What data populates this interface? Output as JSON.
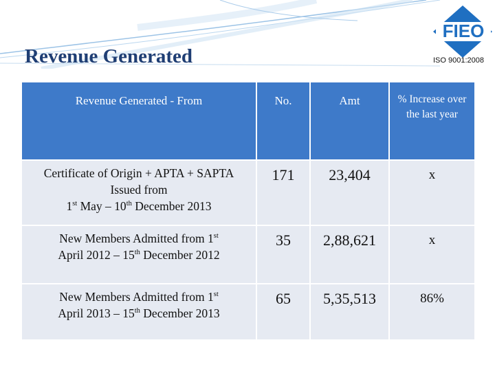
{
  "header": {
    "title": "Revenue Generated",
    "logo": "FIEO",
    "certification": "ISO 9001:2008"
  },
  "table": {
    "columns": [
      "Revenue Generated - From",
      "No.",
      "Amt",
      "% Increase over the last year"
    ],
    "rows": [
      {
        "from": [
          [
            "Certificate of Origin + APTA + SAPTA"
          ],
          [
            "Issued from"
          ],
          [
            "1",
            {
              "sup": "st"
            },
            " May – 10",
            {
              "sup": "th"
            },
            " December 2013"
          ]
        ],
        "no": "171",
        "amt": "23,404",
        "increase": "x"
      },
      {
        "from": [
          [
            "New Members Admitted from 1",
            {
              "sup": "st"
            }
          ],
          [
            "April 2012 – 15",
            {
              "sup": "th"
            },
            " December 2012"
          ]
        ],
        "no": "35",
        "amt": "2,88,621",
        "increase": "x"
      },
      {
        "from": [
          [
            "New Members Admitted from 1",
            {
              "sup": "st"
            }
          ],
          [
            "April 2013 – 15",
            {
              "sup": "th"
            },
            " December 2013"
          ]
        ],
        "no": "65",
        "amt": "5,35,513",
        "increase": "86%"
      }
    ]
  }
}
